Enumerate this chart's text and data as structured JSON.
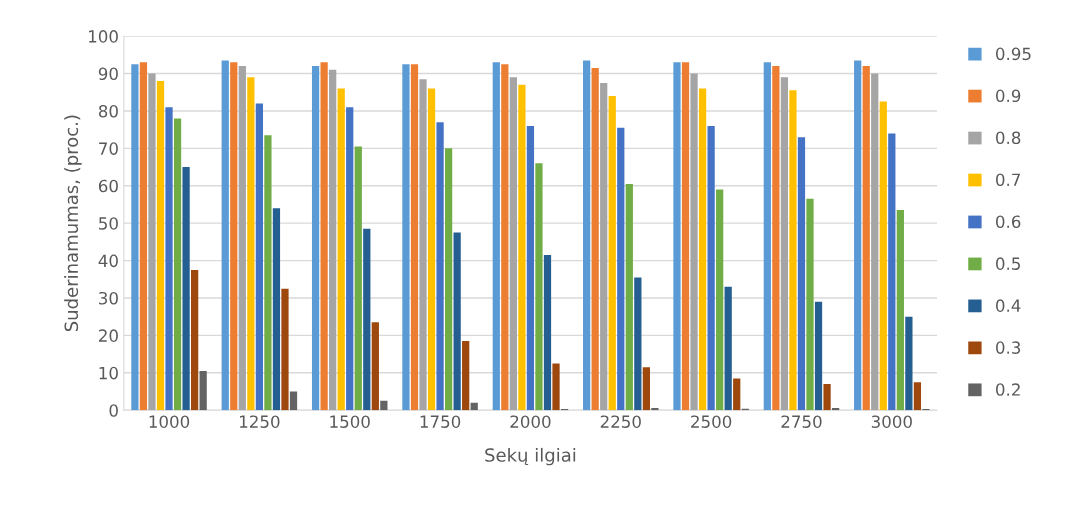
{
  "chart_data": {
    "type": "bar",
    "xlabel": "Sekų ilgiai",
    "ylabel": "Suderinamumas, (proc.)",
    "categories": [
      "1000",
      "1250",
      "1500",
      "1750",
      "2000",
      "2250",
      "2500",
      "2750",
      "3000"
    ],
    "series": [
      {
        "name": "0.95",
        "color": "#5b9bd5",
        "values": [
          92.5,
          93.5,
          92,
          92.5,
          93,
          93.5,
          93,
          93,
          93.5
        ]
      },
      {
        "name": "0.9",
        "color": "#ed7d31",
        "values": [
          93,
          93,
          93,
          92.5,
          92.5,
          91.5,
          93,
          92,
          92
        ]
      },
      {
        "name": "0.8",
        "color": "#a5a5a5",
        "values": [
          90,
          92,
          91,
          88.5,
          89,
          87.5,
          90,
          89,
          90
        ]
      },
      {
        "name": "0.7",
        "color": "#ffc000",
        "values": [
          88,
          89,
          86,
          86,
          87,
          84,
          86,
          85.5,
          82.5
        ]
      },
      {
        "name": "0.6",
        "color": "#4472c4",
        "values": [
          81,
          82,
          81,
          77,
          76,
          75.5,
          76,
          73,
          74
        ]
      },
      {
        "name": "0.5",
        "color": "#70ad47",
        "values": [
          78,
          73.5,
          70.5,
          70,
          66,
          60.5,
          59,
          56.5,
          53.5
        ]
      },
      {
        "name": "0.4",
        "color": "#255e91",
        "values": [
          65,
          54,
          48.5,
          47.5,
          41.5,
          35.5,
          33,
          29,
          25
        ]
      },
      {
        "name": "0.3",
        "color": "#9e480e",
        "values": [
          37.5,
          32.5,
          23.5,
          18.5,
          12.5,
          11.5,
          8.5,
          7,
          7.5
        ]
      },
      {
        "name": "0.2",
        "color": "#636363",
        "values": [
          10.5,
          5,
          2.5,
          2,
          0.3,
          0.6,
          0.4,
          0.6,
          0.3
        ]
      }
    ],
    "ylim": [
      0,
      100
    ],
    "yticks": [
      0,
      10,
      20,
      30,
      40,
      50,
      60,
      70,
      80,
      90,
      100
    ],
    "grid": "y",
    "legend": "right"
  }
}
